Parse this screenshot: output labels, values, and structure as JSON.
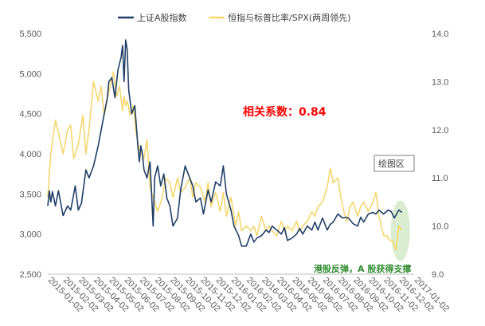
{
  "chart_data": {
    "type": "line",
    "colors": {
      "sse": "#1f3f66",
      "ratio": "#f5d76e",
      "corr": "#ff0000",
      "note": "#2e8b2e",
      "ellipse": "#c7e4b8"
    },
    "legend": {
      "placement": "top-center",
      "items": [
        "上证A股指数",
        "恒指与标普比率/SPX(两周领先)"
      ]
    },
    "correlation_label": "相关系数：0.84",
    "plot_area_label": "绘图区",
    "annotation": "港股反弹，A 股获得支撑",
    "y_left": {
      "min": 2500,
      "max": 5500,
      "ticks": [
        2500,
        3000,
        3500,
        4000,
        4500,
        5000,
        5500
      ],
      "tick_labels": [
        "2,500",
        "3,000",
        "3,500",
        "4,000",
        "4,500",
        "5,000",
        "5,500"
      ]
    },
    "y_right": {
      "min": 9.0,
      "max": 14.0,
      "ticks": [
        9.0,
        10.0,
        11.0,
        12.0,
        13.0,
        14.0
      ],
      "tick_labels": [
        "9.0",
        "10.0",
        "11.0",
        "12.0",
        "13.0",
        "14.0"
      ]
    },
    "x_tick_labels": [
      "2015-01-02",
      "2015-02-02",
      "2015-03-02",
      "2015-04-02",
      "2015-05-02",
      "2015-06-02",
      "2015-07-02",
      "2015-08-02",
      "2015-09-02",
      "2015-10-02",
      "2015-11-02",
      "2015-12-02",
      "2016-01-02",
      "2016-02-02",
      "2016-03-02",
      "2016-04-02",
      "2016-05-02",
      "2016-06-02",
      "2016-07-02",
      "2016-08-02",
      "2016-09-02",
      "2016-10-02",
      "2016-11-02",
      "2016-12-02",
      "2017-01-02"
    ],
    "series": [
      {
        "name": "上证A股指数",
        "axis": "left",
        "x": [
          0.0,
          0.1,
          0.2,
          0.3,
          0.5,
          0.7,
          1.0,
          1.3,
          1.5,
          1.8,
          2.0,
          2.2,
          2.5,
          2.7,
          3.0,
          3.3,
          3.5,
          3.7,
          3.9,
          4.0,
          4.2,
          4.4,
          4.6,
          4.8,
          4.9,
          5.0,
          5.1,
          5.2,
          5.3,
          5.5,
          5.7,
          5.9,
          6.0,
          6.1,
          6.2,
          6.3,
          6.5,
          6.7,
          6.9,
          7.0,
          7.2,
          7.4,
          7.6,
          7.8,
          8.0,
          8.2,
          8.5,
          8.7,
          9.0,
          9.2,
          9.5,
          9.7,
          10.0,
          10.2,
          10.5,
          10.7,
          11.0,
          11.3,
          11.5,
          11.7,
          12.0,
          12.2,
          12.5,
          12.7,
          13.0,
          13.3,
          13.5,
          13.7,
          14.0,
          14.3,
          14.5,
          14.7,
          15.0,
          15.3,
          15.5,
          15.7,
          16.0,
          16.3,
          16.5,
          16.7,
          17.0,
          17.3,
          17.5,
          17.7,
          18.0,
          18.3,
          18.5,
          18.7,
          19.0,
          19.3,
          19.5,
          19.7,
          20.0,
          20.3,
          20.5,
          20.7,
          21.0,
          21.3,
          21.5,
          21.7,
          22.0,
          22.3,
          22.5,
          22.7,
          23.0,
          23.2
        ],
        "values": [
          3350,
          3540,
          3400,
          3530,
          3350,
          3540,
          3230,
          3350,
          3300,
          3600,
          3300,
          3380,
          3800,
          3700,
          3850,
          4100,
          4300,
          4500,
          4700,
          4900,
          4950,
          4700,
          5050,
          5200,
          5350,
          4900,
          5420,
          5300,
          4800,
          4500,
          4600,
          4100,
          3900,
          4100,
          4000,
          3800,
          3700,
          3900,
          3100,
          3700,
          3850,
          3600,
          3750,
          3450,
          3350,
          3100,
          3200,
          3550,
          3850,
          3750,
          3600,
          3400,
          3450,
          3250,
          3550,
          3400,
          3650,
          3600,
          3850,
          3500,
          3300,
          3100,
          2980,
          2850,
          2850,
          3000,
          2900,
          2950,
          2980,
          3050,
          3020,
          3100,
          3050,
          3000,
          3080,
          2920,
          2950,
          3000,
          3070,
          3000,
          3100,
          3050,
          3150,
          3050,
          3200,
          3050,
          3120,
          3150,
          3250,
          3200,
          3210,
          3200,
          3130,
          3100,
          3210,
          3150,
          3250,
          3270,
          3250,
          3300,
          3250,
          3300,
          3280,
          3200,
          3300,
          3270
        ]
      },
      {
        "name": "恒指与标普比率/SPX(两周领先)",
        "axis": "right",
        "x": [
          0.0,
          0.2,
          0.5,
          0.8,
          1.0,
          1.3,
          1.5,
          1.7,
          2.0,
          2.3,
          2.5,
          2.7,
          3.0,
          3.3,
          3.5,
          3.7,
          4.0,
          4.3,
          4.5,
          4.7,
          4.9,
          5.0,
          5.1,
          5.2,
          5.4,
          5.6,
          5.8,
          6.0,
          6.3,
          6.5,
          6.7,
          7.0,
          7.2,
          7.5,
          7.7,
          8.0,
          8.2,
          8.5,
          8.7,
          9.0,
          9.3,
          9.5,
          9.7,
          10.0,
          10.3,
          10.5,
          10.7,
          11.0,
          11.3,
          11.5,
          11.7,
          12.0,
          12.3,
          12.5,
          12.7,
          13.0,
          13.3,
          13.5,
          13.7,
          14.0,
          14.3,
          14.5,
          14.7,
          15.0,
          15.3,
          15.5,
          15.7,
          16.0,
          16.3,
          16.5,
          16.7,
          17.0,
          17.3,
          17.5,
          17.7,
          18.0,
          18.3,
          18.5,
          18.7,
          19.0,
          19.2,
          19.4,
          19.6,
          19.8,
          20.0,
          20.3,
          20.5,
          20.7,
          21.0,
          21.3,
          21.5,
          21.7,
          22.0,
          22.2,
          22.4,
          22.6,
          22.8,
          23.0,
          23.2
        ],
        "values": [
          10.6,
          11.5,
          12.2,
          11.8,
          11.5,
          12.0,
          12.1,
          11.4,
          11.7,
          12.3,
          11.5,
          12.0,
          13.0,
          12.6,
          12.9,
          12.3,
          12.8,
          13.2,
          12.7,
          12.9,
          12.4,
          12.7,
          12.5,
          12.6,
          12.3,
          12.5,
          11.9,
          11.6,
          11.4,
          11.8,
          10.8,
          10.5,
          10.3,
          10.6,
          11.0,
          10.9,
          10.6,
          11.0,
          10.7,
          10.8,
          11.0,
          10.6,
          10.9,
          10.8,
          10.5,
          10.9,
          10.4,
          10.7,
          10.3,
          10.7,
          10.2,
          10.6,
          10.0,
          10.3,
          9.9,
          10.0,
          9.9,
          10.0,
          9.8,
          10.2,
          9.9,
          10.0,
          9.9,
          9.8,
          10.1,
          9.9,
          10.0,
          9.9,
          10.1,
          9.9,
          10.0,
          10.1,
          10.3,
          10.2,
          10.4,
          10.5,
          10.8,
          11.2,
          10.9,
          11.0,
          10.6,
          10.3,
          10.1,
          10.4,
          10.5,
          10.2,
          10.4,
          10.5,
          10.3,
          10.5,
          10.7,
          10.2,
          9.8,
          9.8,
          9.7,
          9.7,
          9.5,
          10.0,
          9.9
        ]
      }
    ]
  }
}
